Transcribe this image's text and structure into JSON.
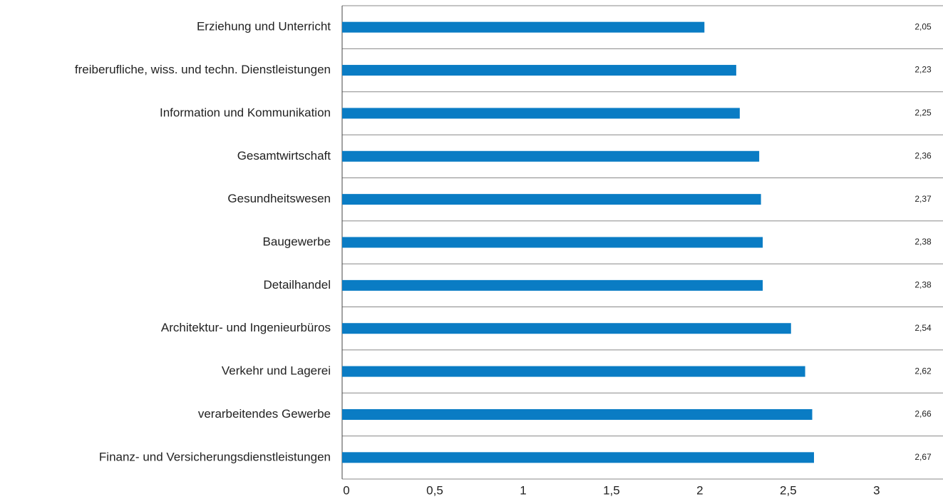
{
  "chart_data": {
    "type": "hbar",
    "categories": [
      "Erziehung und Unterricht",
      "freiberufliche, wiss. und techn. Dienstleistungen",
      "Information und Kommunikation",
      "Gesamtwirtschaft",
      "Gesundheitswesen",
      "Baugewerbe",
      "Detailhandel",
      "Architektur- und Ingenieurbüros",
      "Verkehr und Lagerei",
      "verarbeitendes Gewerbe",
      "Finanz- und Versicherungsdienstleistungen"
    ],
    "values": [
      2.05,
      2.23,
      2.25,
      2.36,
      2.37,
      2.38,
      2.38,
      2.54,
      2.62,
      2.66,
      2.67
    ],
    "value_labels": [
      "2,05",
      "2,23",
      "2,25",
      "2,36",
      "2,37",
      "2,38",
      "2,38",
      "2,54",
      "2,62",
      "2,66",
      "2,67"
    ],
    "color": "#0a7cc4",
    "xlim": [
      0,
      3.4
    ],
    "xticks": [
      0,
      {
        "value": 0.5,
        "label": "0,5"
      },
      1,
      {
        "value": 1.5,
        "label": "1,5"
      },
      2,
      {
        "value": 2.5,
        "label": "2,5"
      },
      3
    ]
  }
}
